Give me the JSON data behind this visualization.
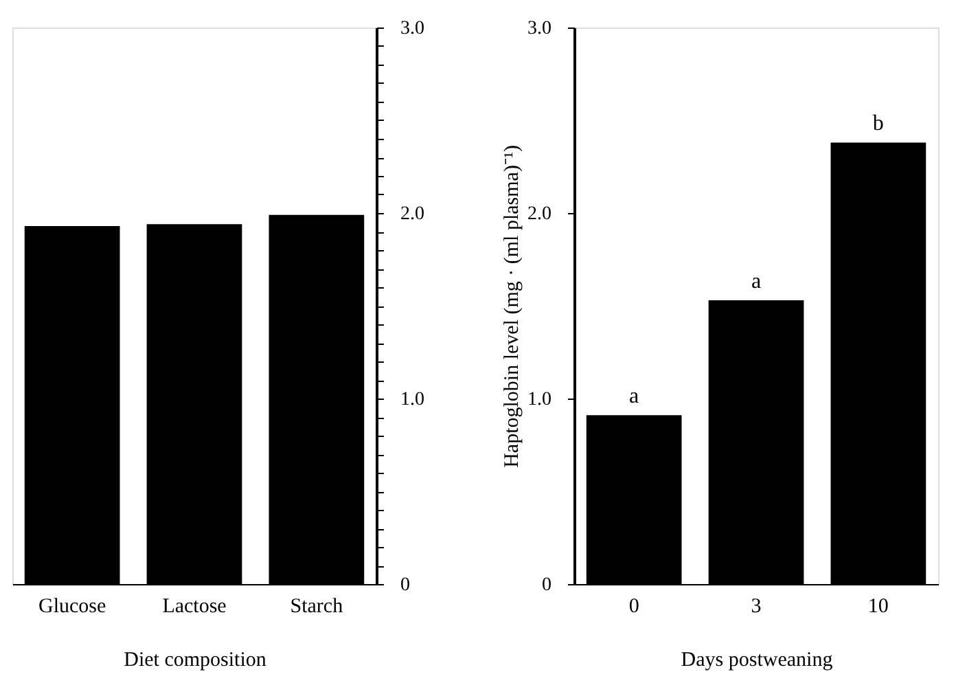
{
  "chart_data": [
    {
      "type": "bar",
      "xlabel": "Diet composition",
      "categories": [
        "Glucose",
        "Lactose",
        "Starch"
      ],
      "values": [
        1.93,
        1.94,
        1.99
      ],
      "color": "#000000",
      "ylim": [
        0,
        3.0
      ],
      "yticks": [
        0,
        {
          "value": 0.1,
          "label": null
        },
        {
          "value": 0.2,
          "label": null
        },
        {
          "value": 0.3,
          "label": null
        },
        {
          "value": 0.4,
          "label": null
        },
        {
          "value": 0.5,
          "label": null
        },
        {
          "value": 0.6,
          "label": null
        },
        {
          "value": 0.7,
          "label": null
        },
        {
          "value": 0.8,
          "label": null
        },
        {
          "value": 0.9,
          "label": null
        },
        {
          "value": 1,
          "label": "1.0"
        },
        {
          "value": 1.1,
          "label": null
        },
        {
          "value": 1.2,
          "label": null
        },
        {
          "value": 1.3,
          "label": null
        },
        {
          "value": 1.4,
          "label": null
        },
        {
          "value": 1.5,
          "label": null
        },
        {
          "value": 1.6,
          "label": null
        },
        {
          "value": 1.7,
          "label": null
        },
        {
          "value": 1.8,
          "label": null
        },
        {
          "value": 1.9,
          "label": null
        },
        {
          "value": 2,
          "label": "2.0"
        },
        {
          "value": 2.1,
          "label": null
        },
        {
          "value": 2.2,
          "label": null
        },
        {
          "value": 2.3,
          "label": null
        },
        {
          "value": 2.4,
          "label": null
        },
        {
          "value": 2.5,
          "label": null
        },
        {
          "value": 2.6,
          "label": null
        },
        {
          "value": 2.7,
          "label": null
        },
        {
          "value": 2.8,
          "label": null
        },
        {
          "value": 2.9,
          "label": null
        },
        {
          "value": 3,
          "label": "3.0"
        }
      ],
      "grid": false
    },
    {
      "type": "bar",
      "xlabel": "Days postweaning",
      "ylabel": "Haptoglobin level (mg · (ml plasma)⁻¹)",
      "categories": [
        "0",
        "3",
        "10"
      ],
      "values": [
        0.91,
        1.53,
        2.38
      ],
      "color": "#000000",
      "ylim": [
        0,
        3.0
      ],
      "yticks": [
        0,
        {
          "value": 1,
          "label": "1.0"
        },
        {
          "value": 2,
          "label": "2.0"
        },
        {
          "value": 3,
          "label": "3.0"
        }
      ],
      "grid": false,
      "annotations": [
        {
          "text": "a",
          "x": "0",
          "y": 0.91
        },
        {
          "text": "a",
          "x": "3",
          "y": 1.53
        },
        {
          "text": "b",
          "x": "10",
          "y": 2.38
        }
      ]
    }
  ]
}
